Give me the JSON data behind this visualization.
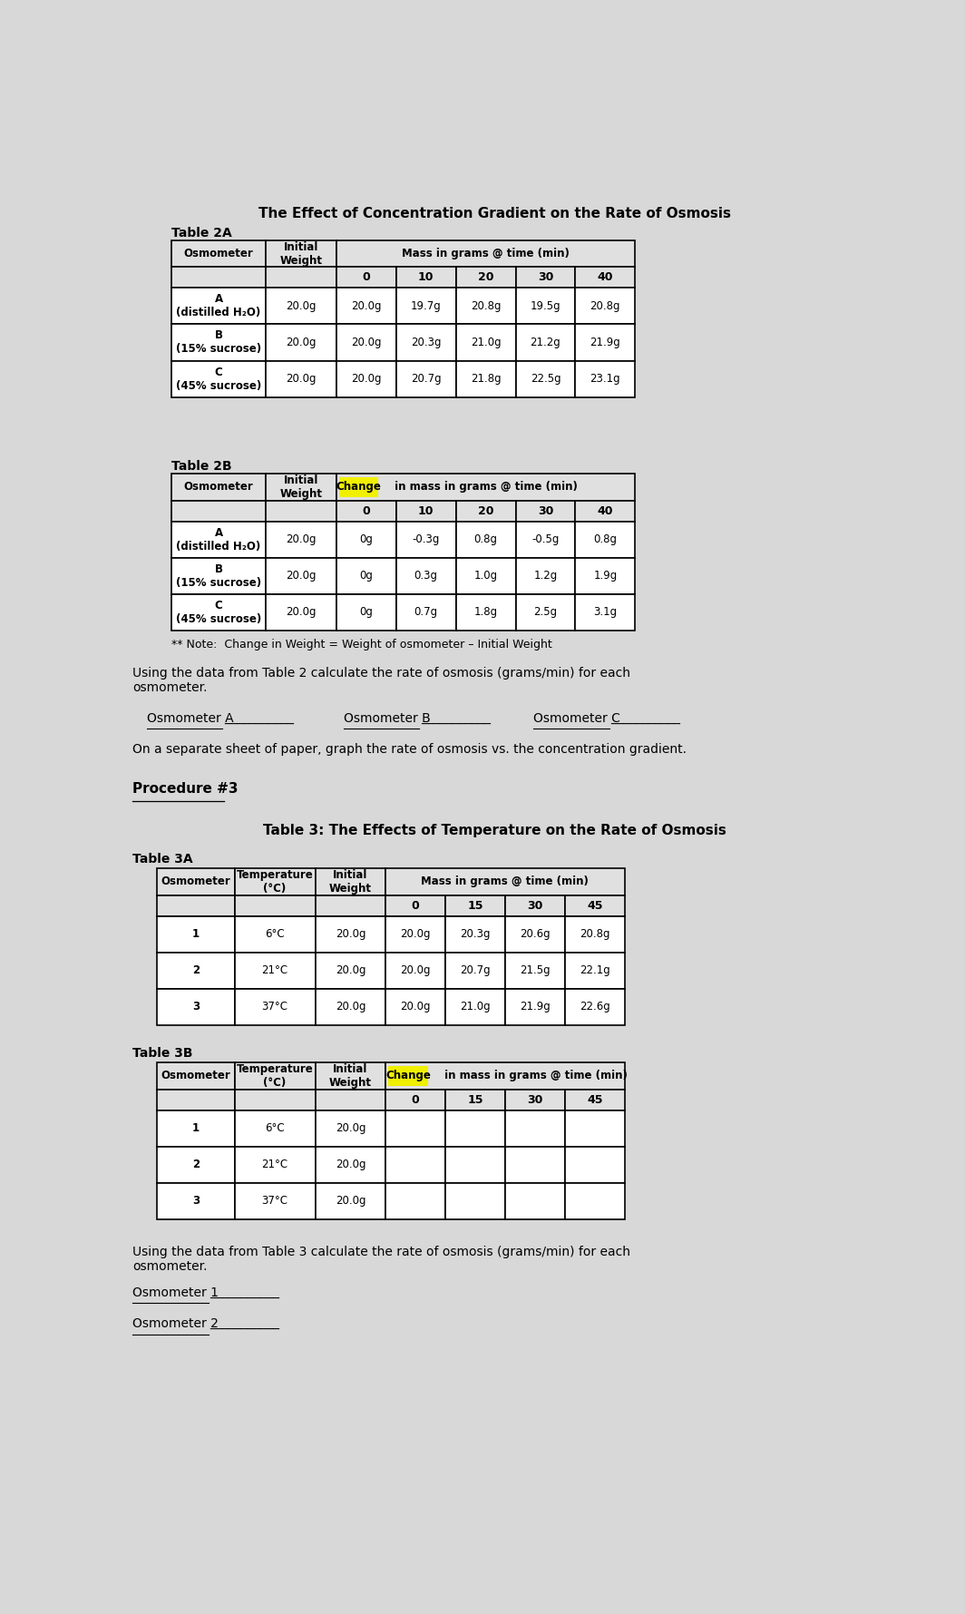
{
  "title": "The Effect of Concentration Gradient on the Rate of Osmosis",
  "bg_color": "#d8d8d8",
  "table2A_label": "Table 2A",
  "table2A_rows": [
    [
      "A\n(distilled H₂O)",
      "20.0g",
      "20.0g",
      "19.7g",
      "20.8g",
      "19.5g",
      "20.8g"
    ],
    [
      "B\n(15% sucrose)",
      "20.0g",
      "20.0g",
      "20.3g",
      "21.0g",
      "21.2g",
      "21.9g"
    ],
    [
      "C\n(45% sucrose)",
      "20.0g",
      "20.0g",
      "20.7g",
      "21.8g",
      "22.5g",
      "23.1g"
    ]
  ],
  "table2B_label": "Table 2B",
  "table2B_rows": [
    [
      "A\n(distilled H₂O)",
      "20.0g",
      "0g",
      "-0.3g",
      "0.8g",
      "-0.5g",
      "0.8g"
    ],
    [
      "B\n(15% sucrose)",
      "20.0g",
      "0g",
      "0.3g",
      "1.0g",
      "1.2g",
      "1.9g"
    ],
    [
      "C\n(45% sucrose)",
      "20.0g",
      "0g",
      "0.7g",
      "1.8g",
      "2.5g",
      "3.1g"
    ]
  ],
  "note_text": "** Note:  Change in Weight = Weight of osmometer – Initial Weight",
  "using_text2": "Using the data from Table 2 calculate the rate of osmosis (grams/min) for each\nosmometer.",
  "graph_line": "On a separate sheet of paper, graph the rate of osmosis vs. the concentration gradient.",
  "procedure3": "Procedure #3",
  "table3_title": "Table 3: The Effects of Temperature on the Rate of Osmosis",
  "table3A_label": "Table 3A",
  "table3A_rows": [
    [
      "1",
      "6°C",
      "20.0g",
      "20.0g",
      "20.3g",
      "20.6g",
      "20.8g"
    ],
    [
      "2",
      "21°C",
      "20.0g",
      "20.0g",
      "20.7g",
      "21.5g",
      "22.1g"
    ],
    [
      "3",
      "37°C",
      "20.0g",
      "20.0g",
      "21.0g",
      "21.9g",
      "22.6g"
    ]
  ],
  "table3B_label": "Table 3B",
  "table3B_rows": [
    [
      "1",
      "6°C",
      "20.0g",
      "",
      "",
      "",
      ""
    ],
    [
      "2",
      "21°C",
      "20.0g",
      "",
      "",
      "",
      ""
    ],
    [
      "3",
      "37°C",
      "20.0g",
      "",
      "",
      "",
      ""
    ]
  ],
  "using_text3": "Using the data from Table 3 calculate the rate of osmosis (grams/min) for each\nosmometer.",
  "yellow_color": "#f0f000",
  "hdr_bg": "#e0e0e0",
  "white": "#ffffff"
}
